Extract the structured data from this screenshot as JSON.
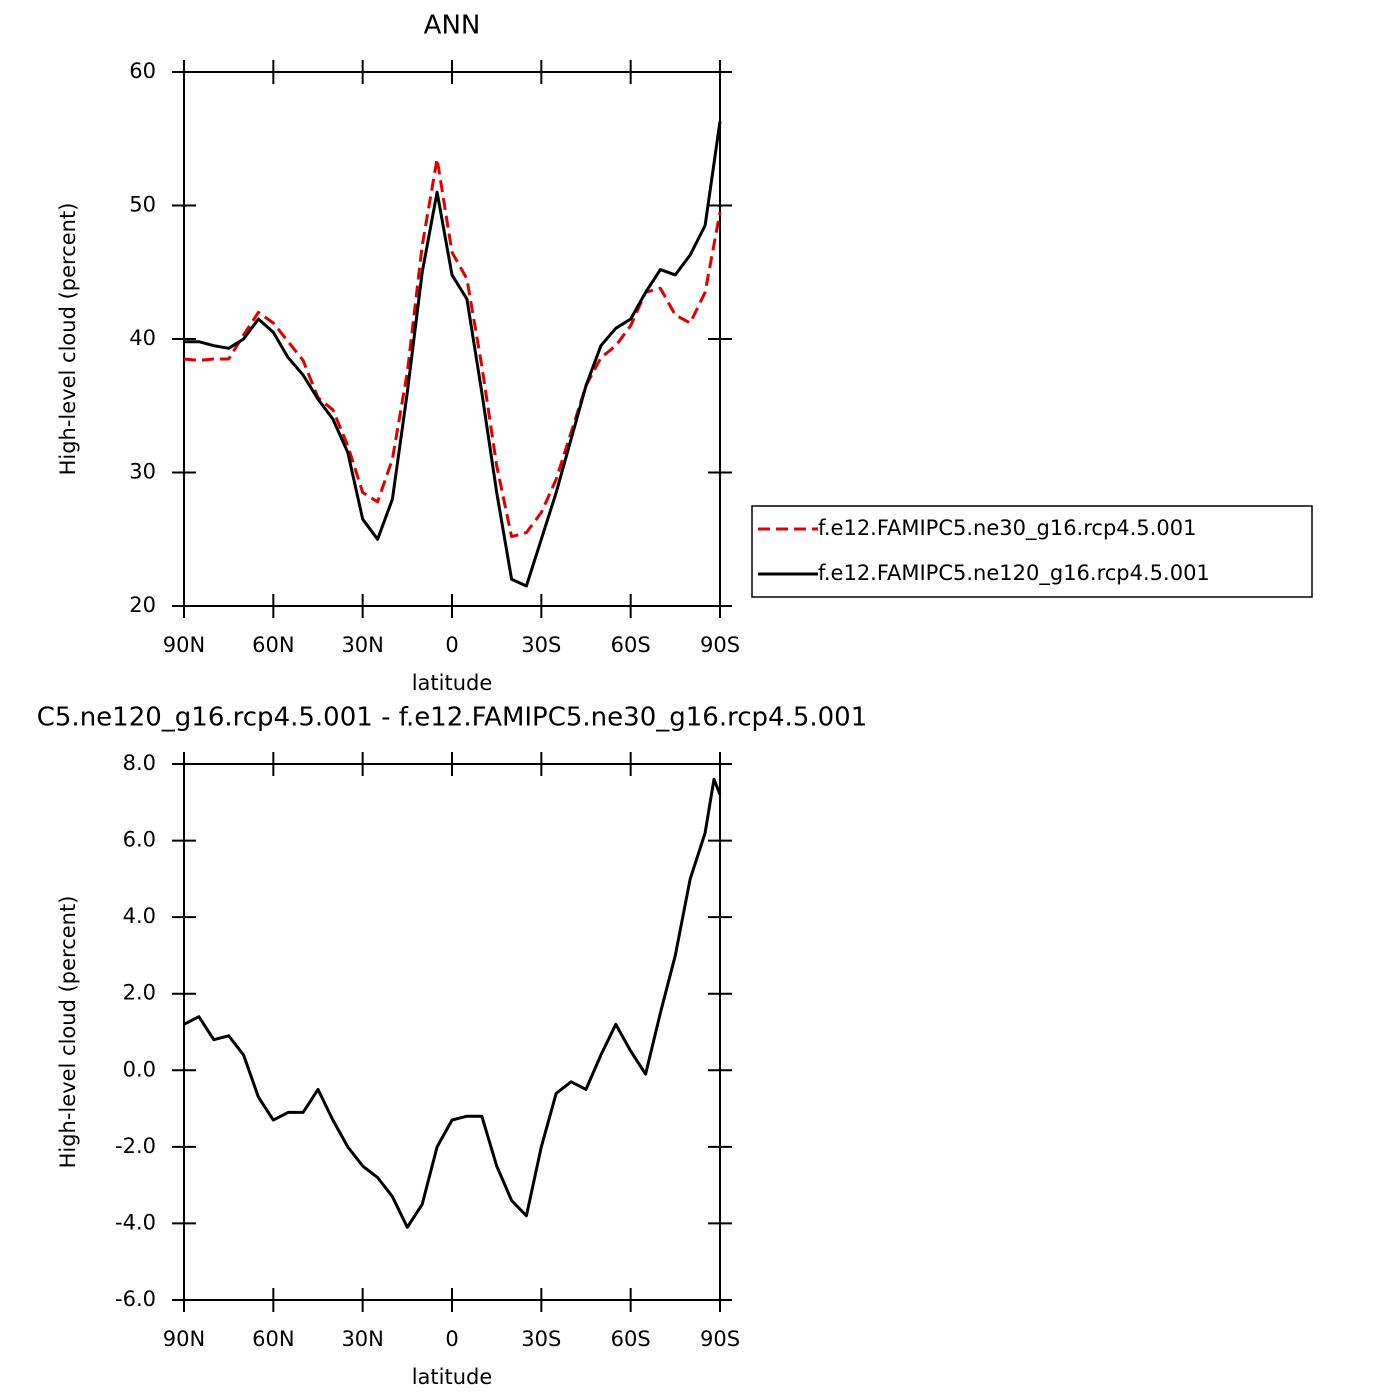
{
  "chart_data": [
    {
      "type": "line",
      "title": "ANN",
      "xlabel": "latitude",
      "ylabel": "High-level cloud (percent)",
      "x": [
        90,
        85,
        80,
        75,
        70,
        65,
        60,
        55,
        50,
        45,
        40,
        35,
        30,
        25,
        20,
        15,
        10,
        5,
        0,
        -5,
        -10,
        -15,
        -20,
        -25,
        -30,
        -35,
        -40,
        -45,
        -50,
        -55,
        -60,
        -65,
        -70,
        -75,
        -80,
        -85,
        -90
      ],
      "xlim": [
        90,
        -90
      ],
      "xticks": [
        {
          "value": 90,
          "label": "90N"
        },
        {
          "value": 60,
          "label": "60N"
        },
        {
          "value": 30,
          "label": "30N"
        },
        0,
        {
          "value": -30,
          "label": "30S"
        },
        {
          "value": -60,
          "label": "60S"
        },
        {
          "value": -90,
          "label": "90S"
        }
      ],
      "ylim": [
        20,
        60
      ],
      "yticks": [
        20,
        30,
        40,
        50,
        60
      ],
      "legend": "right",
      "series": [
        {
          "name": "f.e12.FAMIPC5.ne30_g16.rcp4.5.001",
          "color": "#e00000",
          "dash": true,
          "values": [
            38.5,
            38.4,
            38.5,
            38.5,
            40.3,
            42.0,
            41.2,
            39.8,
            38.4,
            35.6,
            34.7,
            32.0,
            28.5,
            27.8,
            31.0,
            37.5,
            47.0,
            53.5,
            46.5,
            44.5,
            38.0,
            30.5,
            25.2,
            25.5,
            27.0,
            29.5,
            33.0,
            36.5,
            38.6,
            39.5,
            41.0,
            43.5,
            43.8,
            41.8,
            41.2,
            43.5,
            49.5
          ]
        },
        {
          "name": "f.e12.FAMIPC5.ne120_g16.rcp4.5.001",
          "color": "#000000",
          "dash": false,
          "values": [
            39.8,
            39.8,
            39.5,
            39.3,
            40.0,
            41.5,
            40.5,
            38.6,
            37.3,
            35.5,
            34.0,
            31.5,
            26.5,
            25.0,
            28.0,
            36.0,
            45.0,
            51.0,
            44.8,
            43.0,
            36.0,
            28.5,
            22.0,
            21.5,
            25.0,
            28.5,
            32.5,
            36.5,
            39.5,
            40.8,
            41.5,
            43.5,
            45.2,
            44.8,
            46.3,
            48.5,
            56.3
          ]
        }
      ]
    },
    {
      "type": "line",
      "title": "C5.ne120_g16.rcp4.5.001 - f.e12.FAMIPC5.ne30_g16.rcp4.5.001",
      "xlabel": "latitude",
      "ylabel": "High-level cloud (percent)",
      "x": [
        90,
        85,
        80,
        75,
        70,
        65,
        60,
        55,
        50,
        45,
        40,
        35,
        30,
        25,
        20,
        15,
        10,
        5,
        0,
        -5,
        -10,
        -15,
        -20,
        -25,
        -30,
        -35,
        -40,
        -45,
        -50,
        -55,
        -60,
        -65,
        -70,
        -75,
        -80,
        -85,
        -88,
        -90
      ],
      "xlim": [
        90,
        -90
      ],
      "xticks": [
        {
          "value": 90,
          "label": "90N"
        },
        {
          "value": 60,
          "label": "60N"
        },
        {
          "value": 30,
          "label": "30N"
        },
        0,
        {
          "value": -30,
          "label": "30S"
        },
        {
          "value": -60,
          "label": "60S"
        },
        {
          "value": -90,
          "label": "90S"
        }
      ],
      "ylim": [
        -6,
        8
      ],
      "yticks": [
        {
          "value": -6,
          "label": "-6.0"
        },
        {
          "value": -4,
          "label": "-4.0"
        },
        {
          "value": -2,
          "label": "-2.0"
        },
        {
          "value": 0,
          "label": "0.0"
        },
        {
          "value": 2,
          "label": "2.0"
        },
        {
          "value": 4,
          "label": "4.0"
        },
        {
          "value": 6,
          "label": "6.0"
        },
        {
          "value": 8,
          "label": "8.0"
        }
      ],
      "color": "#000000",
      "values": [
        1.2,
        1.4,
        0.8,
        0.9,
        0.4,
        -0.7,
        -1.3,
        -1.1,
        -1.1,
        -0.5,
        -1.3,
        -2.0,
        -2.5,
        -2.8,
        -3.3,
        -4.1,
        -3.5,
        -2.0,
        -1.3,
        -1.2,
        -1.2,
        -2.5,
        -3.4,
        -3.8,
        -2.0,
        -0.6,
        -0.3,
        -0.5,
        0.4,
        1.2,
        0.5,
        -0.1,
        1.5,
        3.0,
        5.0,
        6.2,
        7.6,
        7.2
      ]
    }
  ]
}
